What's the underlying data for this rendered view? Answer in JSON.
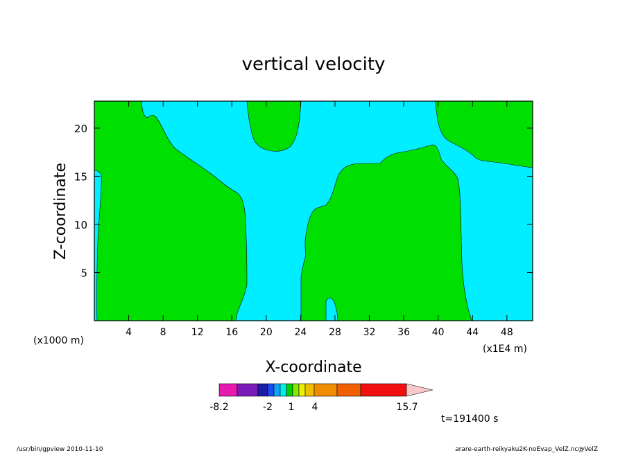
{
  "chart_data": {
    "type": "contour",
    "title": "vertical velocity",
    "xlabel": "X-coordinate",
    "ylabel": "Z-coordinate",
    "x_unit_label": "(x1000 m)",
    "x_multiplier_label": "(x1E4 m)",
    "xlim": [
      0,
      51
    ],
    "ylim": [
      0,
      22.8
    ],
    "x_ticks": [
      4,
      8,
      12,
      16,
      20,
      24,
      28,
      32,
      36,
      40,
      44,
      48
    ],
    "y_ticks": [
      5,
      10,
      15,
      20
    ],
    "colorbar": {
      "colors": [
        "#e619b0",
        "#7a1ab8",
        "#1c1ca8",
        "#1a4cf0",
        "#14a0f5",
        "#00eeee",
        "#00d000",
        "#88e800",
        "#eeee00",
        "#f0c000",
        "#f08c00",
        "#f06000",
        "#f01010",
        "#f08080",
        "#f8c8c8"
      ],
      "labels": [
        "-8.2",
        "-2",
        "1",
        "4",
        "15.7"
      ]
    },
    "field_colors": {
      "negative": "#00eeff",
      "positive": "#00e000"
    },
    "time_label": "t=191400 s",
    "footer_left": "/usr/bin/gpview 2010-11-10",
    "footer_right": "arare-earth-reikyaku2K-noEvap_VelZ.nc@VelZ"
  }
}
